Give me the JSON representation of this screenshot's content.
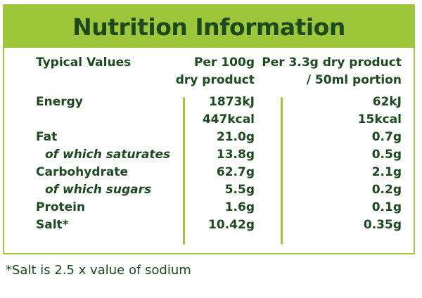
{
  "title": "Nutrition Information",
  "header": {
    "label": "Typical Values",
    "col1": [
      "Per 100g",
      "dry product"
    ],
    "col2": [
      "Per 3.3g dry product",
      "/ 50ml portion"
    ]
  },
  "rows": [
    {
      "label": "Energy",
      "col1": "1873kJ",
      "col2": "62kJ"
    },
    {
      "label": "",
      "col1": "447kcal",
      "col2": "15kcal"
    },
    {
      "label": "Fat",
      "col1": "21.0g",
      "col2": "0.7g"
    },
    {
      "label": "of which saturates",
      "col1": "13.8g",
      "col2": "0.5g"
    },
    {
      "label": "Carbohydrate",
      "col1": "62.7g",
      "col2": "2.1g"
    },
    {
      "label": "of which sugars",
      "col1": "5.5g",
      "col2": "0.2g"
    },
    {
      "label": "Protein",
      "col1": "1.6g",
      "col2": "0.1g"
    },
    {
      "label": "Salt*",
      "col1": "10.42g",
      "col2": "0.35g"
    }
  ],
  "footnote": "*Salt is 2.5 x value of sodium",
  "colors": {
    "accent": "#9ec63b",
    "text": "#1c4a1e"
  }
}
